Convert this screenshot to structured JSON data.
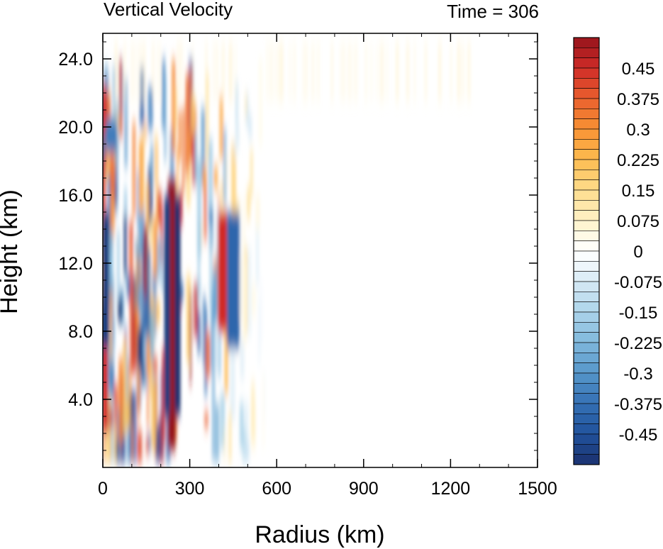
{
  "chart_data": {
    "type": "heatmap",
    "title_left": "Vertical Velocity",
    "title_right": "Time = 306",
    "xlabel": "Radius (km)",
    "ylabel": "Height (km)",
    "xlim": [
      0,
      1500
    ],
    "ylim": [
      0,
      25.5
    ],
    "x_ticks": [
      0,
      300,
      600,
      900,
      1200,
      1500
    ],
    "x_tick_labels": [
      "0",
      "300",
      "600",
      "900",
      "1200",
      "1500"
    ],
    "x_minor_step": 100,
    "y_ticks": [
      4,
      8,
      12,
      16,
      20,
      24
    ],
    "y_tick_labels": [
      "4.0",
      "8.0",
      "12.0",
      "16.0",
      "20.0",
      "24.0"
    ],
    "y_minor_step": 1,
    "colorbar": {
      "min": -0.525,
      "max": 0.525,
      "step": 0.025,
      "label_values": [
        0.45,
        0.375,
        0.3,
        0.225,
        0.15,
        0.075,
        0,
        -0.075,
        -0.15,
        -0.225,
        -0.3,
        -0.375,
        -0.45
      ],
      "label_texts": [
        "0.45",
        "0.375",
        "0.3",
        "0.225",
        "0.15",
        "0.075",
        "0",
        "-0.075",
        "-0.15",
        "-0.225",
        "-0.3",
        "-0.375",
        "-0.45"
      ]
    },
    "features": [
      {
        "kind": "updraft",
        "r_center": 238,
        "r_width": 14,
        "z_bottom": 1,
        "z_top": 17,
        "w": 0.55
      },
      {
        "kind": "downdraft",
        "r_center": 258,
        "r_width": 10,
        "z_bottom": 3,
        "z_top": 16,
        "w": -0.55
      },
      {
        "kind": "downdraft",
        "r_center": 222,
        "r_width": 10,
        "z_bottom": 3,
        "z_top": 16,
        "w": -0.5
      },
      {
        "kind": "updraft",
        "r_center": 415,
        "r_width": 18,
        "z_bottom": 8,
        "z_top": 15,
        "w": 0.45
      },
      {
        "kind": "downdraft",
        "r_center": 450,
        "r_width": 22,
        "z_bottom": 7,
        "z_top": 15,
        "w": -0.4
      },
      {
        "kind": "downdraft",
        "r_center": 10,
        "r_width": 12,
        "z_bottom": 7,
        "z_top": 15,
        "w": -0.5
      },
      {
        "kind": "updraft",
        "r_center": 8,
        "r_width": 10,
        "z_bottom": 2,
        "z_top": 7,
        "w": 0.45
      },
      {
        "kind": "updraft",
        "r_center": 5,
        "r_width": 8,
        "z_bottom": 19.5,
        "z_top": 22.5,
        "w": 0.45
      },
      {
        "kind": "downdraft",
        "r_center": 30,
        "r_width": 20,
        "z_bottom": 18.5,
        "z_top": 20.5,
        "w": -0.35
      }
    ]
  }
}
